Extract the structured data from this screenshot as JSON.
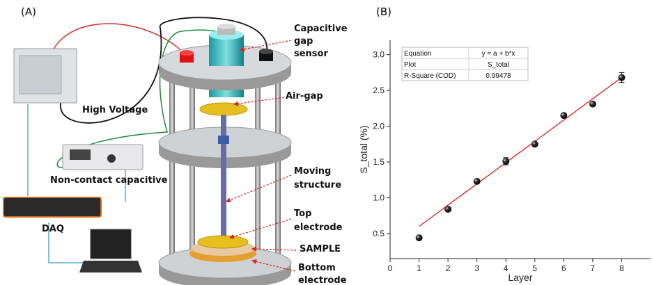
{
  "panel_a": {
    "label": "(A)",
    "capacitive_gap_sensor": [
      "Capacitive",
      "gap",
      "sensor"
    ],
    "air_gap": "Air-gap",
    "moving_structure": [
      "Moving",
      "structure"
    ],
    "top_electrode": [
      "Top",
      "electrode"
    ],
    "sample": "SAMPLE",
    "bottom_electrode": [
      "Bottom",
      "electrode"
    ],
    "high_voltage": "High Voltage",
    "non_contact_capacitive": "Non-contact capacitive",
    "daq": "DAQ"
  },
  "chart_data": {
    "type": "scatter",
    "panel_label": "(B)",
    "x_label": "Layer",
    "y_label": "S_total (%)",
    "x": [
      1,
      2,
      3,
      4,
      5,
      6,
      7,
      8
    ],
    "values": [
      0.44,
      0.84,
      1.23,
      1.51,
      1.75,
      2.15,
      2.31,
      2.68
    ],
    "errors": [
      0.02,
      0.02,
      0.02,
      0.05,
      0.02,
      0.02,
      0.02,
      0.07
    ],
    "color": "#111111",
    "fit": {
      "x": [
        1,
        8
      ],
      "values": [
        0.6,
        2.68
      ],
      "color": "#e00000"
    },
    "xlim": [
      0,
      9
    ],
    "xticks": [
      0,
      1,
      2,
      3,
      4,
      5,
      6,
      7,
      8
    ],
    "ylim": [
      0.15,
      3.2
    ],
    "yticks": [
      0.5,
      {
        "value": 1,
        "label": "1.0"
      },
      1.5,
      {
        "value": 2,
        "label": "2.0"
      },
      2.5,
      {
        "value": 3,
        "label": "3.0"
      }
    ],
    "table": [
      [
        "Equation",
        "y = a + b*x"
      ],
      [
        "Plot",
        "S_total"
      ],
      [
        "R-Square (COD)",
        "0.99478"
      ]
    ]
  }
}
